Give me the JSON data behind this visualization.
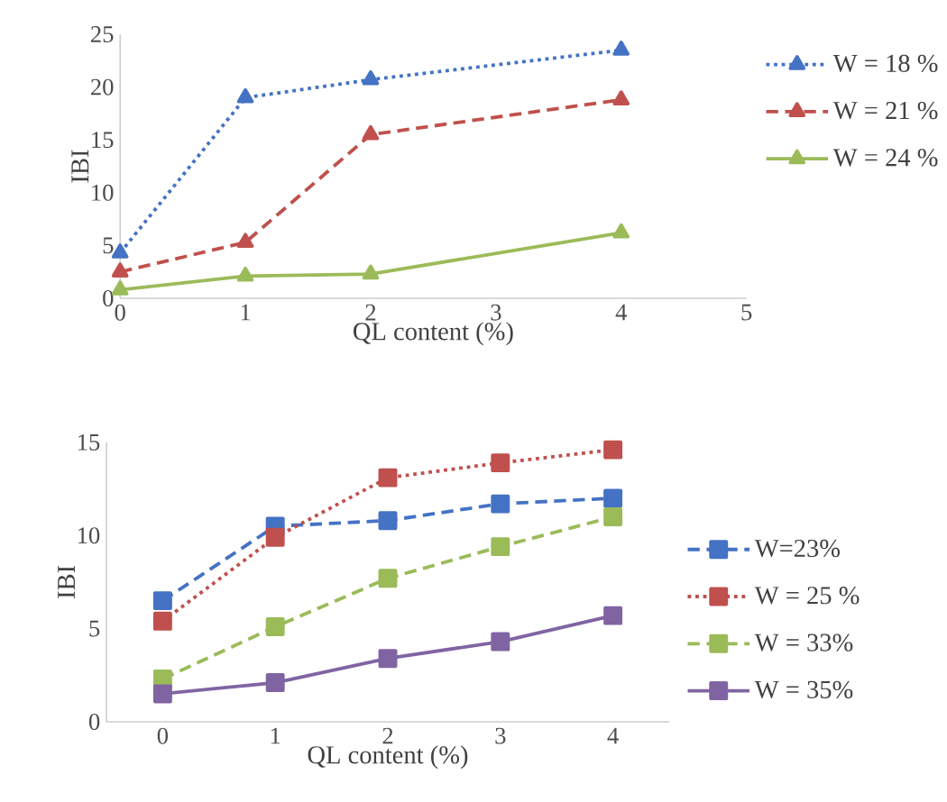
{
  "chart_data": [
    {
      "type": "line",
      "xlabel": "QL content (%)",
      "ylabel": "IBI",
      "x": [
        0,
        1,
        2,
        4
      ],
      "xlim": [
        0,
        5
      ],
      "xticks": [
        0,
        1,
        2,
        3,
        4,
        5
      ],
      "ylim": [
        0,
        25
      ],
      "yticks": [
        0,
        5,
        10,
        15,
        20,
        25
      ],
      "grid": false,
      "legend": "top right",
      "marker": "triangle",
      "series": [
        {
          "name": "W = 18 %",
          "color": "#4472c4",
          "line_style": "dotted",
          "values": [
            4.3,
            19,
            20.7,
            23.5
          ]
        },
        {
          "name": "W = 21 %",
          "color": "#c0504d",
          "line_style": "dashed",
          "values": [
            2.5,
            5.3,
            15.5,
            18.8
          ]
        },
        {
          "name": "W = 24 %",
          "color": "#9bbb59",
          "line_style": "solid",
          "values": [
            0.8,
            2.1,
            2.3,
            6.2
          ]
        }
      ]
    },
    {
      "type": "line",
      "xlabel": "QL content (%)",
      "ylabel": "IBI",
      "categories": [
        "0",
        "1",
        "2",
        "3",
        "4"
      ],
      "ylim": [
        0,
        15
      ],
      "yticks": [
        0,
        5,
        10,
        15
      ],
      "grid": false,
      "legend": "bottom right",
      "marker": "square",
      "series": [
        {
          "name": "W=23%",
          "color": "#4472c4",
          "line_style": "dashed",
          "values": [
            6.5,
            10.5,
            10.8,
            11.7,
            12
          ]
        },
        {
          "name": "W = 25 %",
          "color": "#c0504d",
          "line_style": "dotted",
          "values": [
            5.4,
            9.9,
            13.1,
            13.9,
            14.6
          ]
        },
        {
          "name": "W = 33%",
          "color": "#9bbb59",
          "line_style": "dashed",
          "values": [
            2.3,
            5.1,
            7.7,
            9.4,
            11
          ]
        },
        {
          "name": "W =  35%",
          "color": "#8064a2",
          "line_style": "solid",
          "values": [
            1.5,
            2.1,
            3.4,
            4.3,
            5.7
          ]
        }
      ]
    }
  ]
}
